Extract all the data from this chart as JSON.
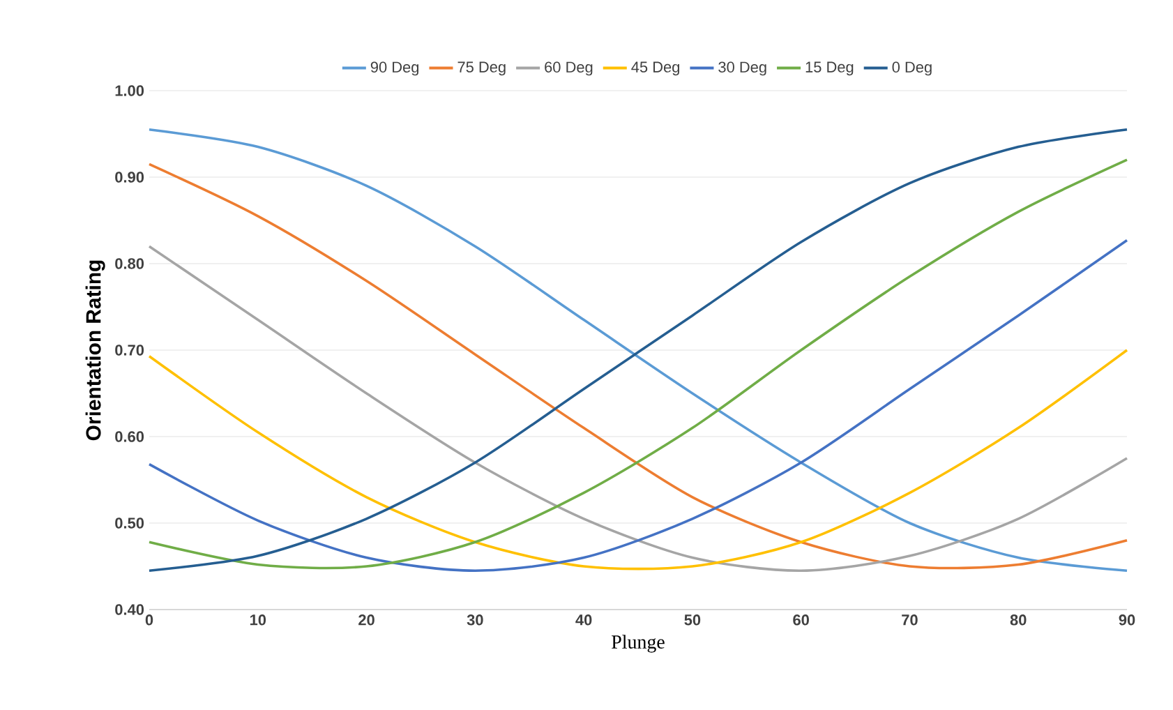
{
  "chart_data": {
    "type": "line",
    "xlabel": "Plunge",
    "ylabel": "Orientation Rating",
    "x": [
      0,
      10,
      20,
      30,
      40,
      50,
      60,
      70,
      80,
      90
    ],
    "series": [
      {
        "name": "90 Deg",
        "color": "#5b9bd5",
        "values": [
          0.955,
          0.935,
          0.89,
          0.82,
          0.735,
          0.65,
          0.57,
          0.5,
          0.46,
          0.445
        ]
      },
      {
        "name": "75 Deg",
        "color": "#ed7d31",
        "values": [
          0.915,
          0.855,
          0.78,
          0.695,
          0.61,
          0.53,
          0.478,
          0.45,
          0.452,
          0.48
        ]
      },
      {
        "name": "60 Deg",
        "color": "#a5a5a5",
        "values": [
          0.82,
          0.735,
          0.65,
          0.57,
          0.505,
          0.46,
          0.445,
          0.462,
          0.505,
          0.575
        ]
      },
      {
        "name": "45 Deg",
        "color": "#ffc000",
        "values": [
          0.693,
          0.605,
          0.53,
          0.478,
          0.45,
          0.45,
          0.478,
          0.535,
          0.61,
          0.7
        ]
      },
      {
        "name": "30 Deg",
        "color": "#4472c4",
        "values": [
          0.568,
          0.503,
          0.46,
          0.445,
          0.46,
          0.505,
          0.57,
          0.655,
          0.74,
          0.827
        ]
      },
      {
        "name": "15 Deg",
        "color": "#70ad47",
        "values": [
          0.478,
          0.452,
          0.45,
          0.478,
          0.535,
          0.61,
          0.7,
          0.785,
          0.86,
          0.92
        ]
      },
      {
        "name": "0 Deg",
        "color": "#255e91",
        "values": [
          0.445,
          0.462,
          0.505,
          0.57,
          0.655,
          0.74,
          0.825,
          0.893,
          0.935,
          0.955
        ]
      }
    ],
    "xlim": [
      0,
      90
    ],
    "xticks": [
      0,
      10,
      20,
      30,
      40,
      50,
      60,
      70,
      80,
      90
    ],
    "ylim": [
      0.4,
      1.0
    ],
    "yticks": [
      {
        "value": 0.4,
        "label": "0.40"
      },
      {
        "value": 0.5,
        "label": "0.50"
      },
      {
        "value": 0.6,
        "label": "0.60"
      },
      {
        "value": 0.7,
        "label": "0.70"
      },
      {
        "value": 0.8,
        "label": "0.80"
      },
      {
        "value": 0.9,
        "label": "0.90"
      },
      {
        "value": 1.0,
        "label": "1.00"
      }
    ],
    "grid": "y",
    "legend": "top",
    "marker": "none",
    "line_style": "solid"
  }
}
